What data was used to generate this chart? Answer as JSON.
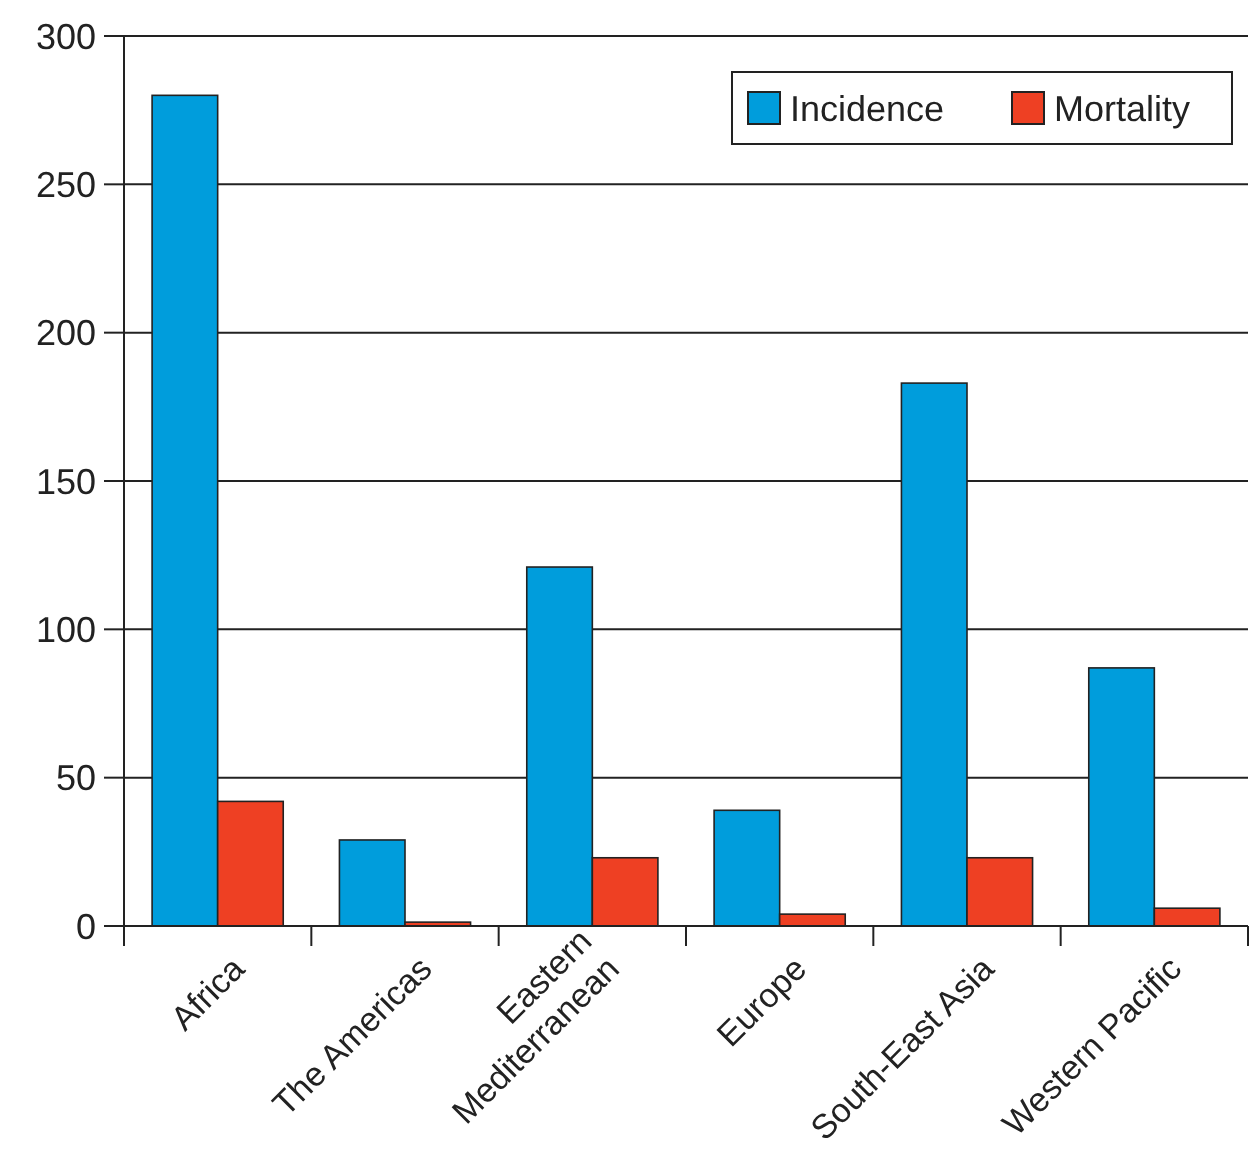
{
  "chart_data": {
    "type": "bar",
    "categories": [
      "Africa",
      "The Americas",
      "Eastern\nMediterranean",
      "Europe",
      "South-East Asia",
      "Western Pacific"
    ],
    "series": [
      {
        "name": "Incidence",
        "color": "#009ddc",
        "values": [
          280,
          29,
          121,
          39,
          183,
          87
        ]
      },
      {
        "name": "Mortality",
        "color": "#ee4023",
        "values": [
          42,
          1.3,
          23,
          4,
          23,
          6
        ]
      }
    ],
    "ylim": [
      0,
      300
    ],
    "yticks": [
      0,
      50,
      100,
      150,
      200,
      250,
      300
    ],
    "grid": "y",
    "legend": "top right"
  }
}
